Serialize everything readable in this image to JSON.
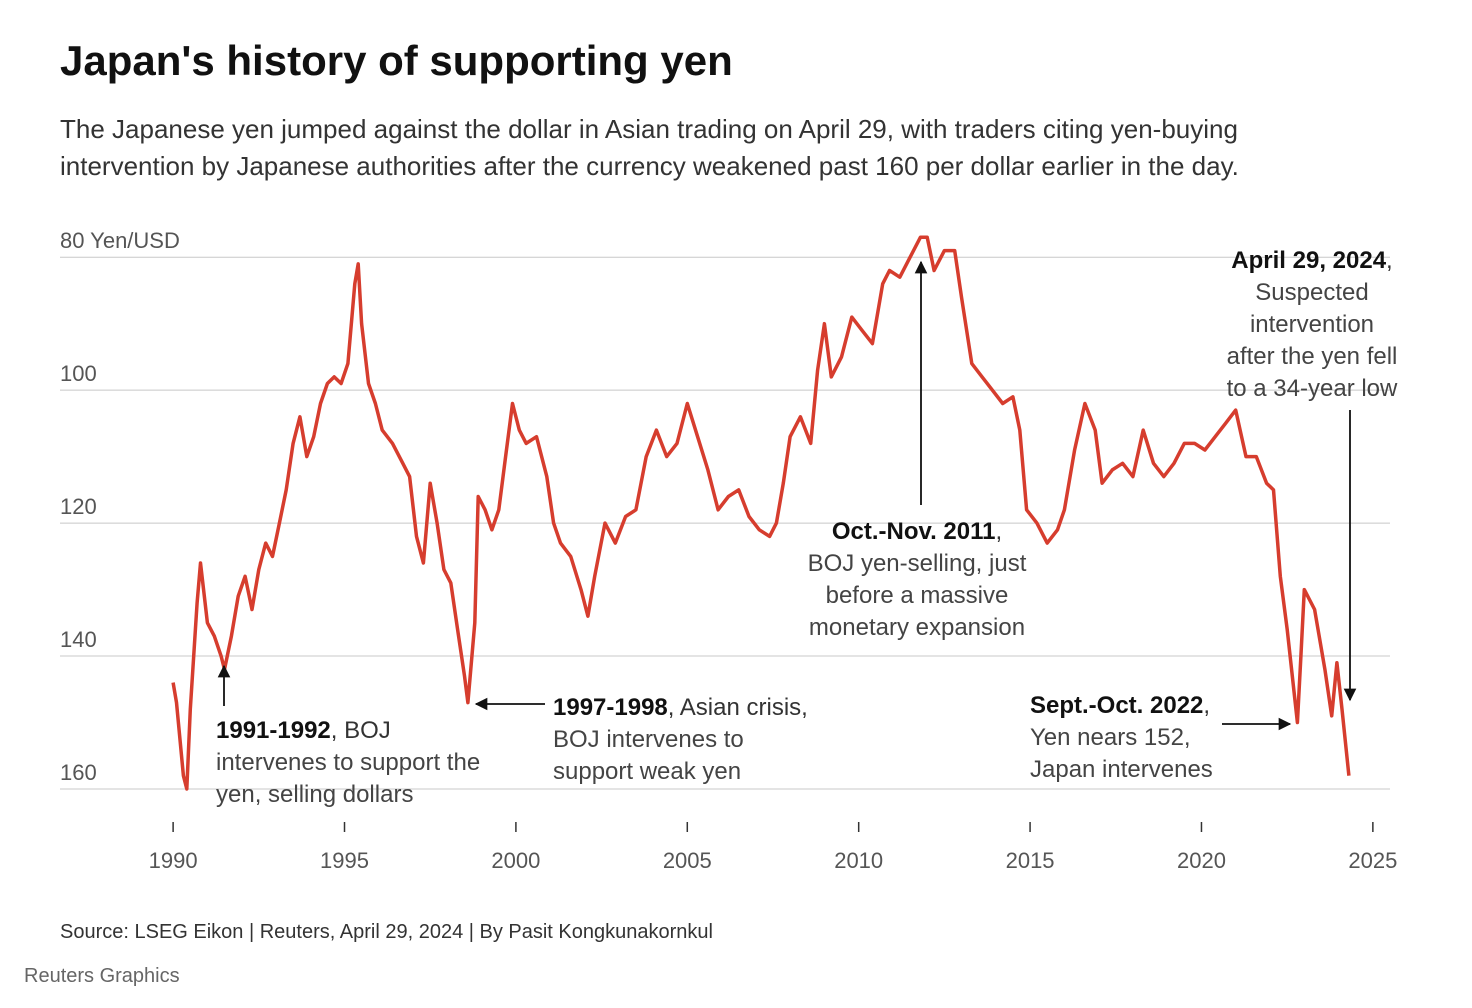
{
  "chart_data": {
    "type": "line",
    "title": "Japan's history of supporting yen",
    "subtitle": [
      "The Japanese yen jumped against the dollar in Asian trading on April 29, with traders citing yen-buying",
      "intervention by Japanese authorities after the currency weakened past 160 per dollar earlier in the day."
    ],
    "source": "Source: LSEG Eikon | Reuters, April 29, 2024 | By Pasit Kongkunakornkul",
    "credit": "Reuters Graphics",
    "y_inverted": true,
    "grid": true,
    "xlim": [
      1986.7,
      2025.5
    ],
    "ylim": [
      75,
      160
    ],
    "xticks": [
      1990,
      1995,
      2000,
      2005,
      2010,
      2015,
      2020,
      2025
    ],
    "yticks": [
      {
        "value": 80,
        "label": "80 Yen/USD"
      },
      100,
      120,
      140,
      160
    ],
    "series": [
      {
        "color": "#d63d2e",
        "x": [
          1990.0,
          1990.1,
          1990.3,
          1990.4,
          1990.5,
          1990.7,
          1990.8,
          1991.0,
          1991.2,
          1991.4,
          1991.5,
          1991.7,
          1991.9,
          1992.1,
          1992.3,
          1992.5,
          1992.7,
          1992.9,
          1993.1,
          1993.3,
          1993.5,
          1993.7,
          1993.9,
          1994.1,
          1994.3,
          1994.5,
          1994.7,
          1994.9,
          1995.1,
          1995.3,
          1995.4,
          1995.5,
          1995.7,
          1995.9,
          1996.1,
          1996.4,
          1996.7,
          1996.9,
          1997.1,
          1997.3,
          1997.5,
          1997.7,
          1997.9,
          1998.1,
          1998.3,
          1998.5,
          1998.6,
          1998.8,
          1998.9,
          1999.1,
          1999.3,
          1999.5,
          1999.7,
          1999.9,
          2000.1,
          2000.3,
          2000.6,
          2000.9,
          2001.1,
          2001.3,
          2001.6,
          2001.9,
          2002.1,
          2002.3,
          2002.6,
          2002.9,
          2003.2,
          2003.5,
          2003.8,
          2004.1,
          2004.4,
          2004.7,
          2005.0,
          2005.3,
          2005.6,
          2005.9,
          2006.2,
          2006.5,
          2006.8,
          2007.1,
          2007.4,
          2007.6,
          2007.8,
          2008.0,
          2008.3,
          2008.6,
          2008.8,
          2009.0,
          2009.2,
          2009.5,
          2009.8,
          2010.1,
          2010.4,
          2010.7,
          2010.9,
          2011.2,
          2011.5,
          2011.8,
          2012.0,
          2012.2,
          2012.5,
          2012.8,
          2013.0,
          2013.3,
          2013.6,
          2013.9,
          2014.2,
          2014.5,
          2014.7,
          2014.9,
          2015.2,
          2015.5,
          2015.8,
          2016.0,
          2016.3,
          2016.6,
          2016.9,
          2017.1,
          2017.4,
          2017.7,
          2018.0,
          2018.3,
          2018.6,
          2018.9,
          2019.2,
          2019.5,
          2019.8,
          2020.1,
          2020.4,
          2020.7,
          2021.0,
          2021.3,
          2021.6,
          2021.9,
          2022.1,
          2022.3,
          2022.5,
          2022.8,
          2022.9,
          2023.0,
          2023.3,
          2023.6,
          2023.8,
          2023.95,
          2024.1,
          2024.3
        ],
        "values": [
          144,
          147,
          158,
          160,
          148,
          132,
          126,
          135,
          137,
          140,
          142,
          137,
          131,
          128,
          133,
          127,
          123,
          125,
          120,
          115,
          108,
          104,
          110,
          107,
          102,
          99,
          98,
          99,
          96,
          84,
          81,
          90,
          99,
          102,
          106,
          108,
          111,
          113,
          122,
          126,
          114,
          120,
          127,
          129,
          136,
          143,
          147,
          135,
          116,
          118,
          121,
          118,
          110,
          102,
          106,
          108,
          107,
          113,
          120,
          123,
          125,
          130,
          134,
          128,
          120,
          123,
          119,
          118,
          110,
          106,
          110,
          108,
          102,
          107,
          112,
          118,
          116,
          115,
          119,
          121,
          122,
          120,
          114,
          107,
          104,
          108,
          97,
          90,
          98,
          95,
          89,
          91,
          93,
          84,
          82,
          83,
          80,
          77,
          77,
          82,
          79,
          79,
          86,
          96,
          98,
          100,
          102,
          101,
          106,
          118,
          120,
          123,
          121,
          118,
          109,
          102,
          106,
          114,
          112,
          111,
          113,
          106,
          111,
          113,
          111,
          108,
          108,
          109,
          107,
          105,
          103,
          110,
          110,
          114,
          115,
          128,
          136,
          150,
          140,
          130,
          133,
          142,
          149,
          141,
          148,
          158
        ]
      }
    ],
    "annotations": [
      {
        "bold": "1991-1992",
        "lines": [
          ", BOJ",
          "intervenes to support the",
          "yen, selling dollars"
        ]
      },
      {
        "bold": "1997-1998",
        "lines": [
          ", Asian crisis,",
          "BOJ intervenes to",
          "support weak yen"
        ]
      },
      {
        "bold": "Oct.-Nov. 2011",
        "lines": [
          ",",
          "BOJ yen-selling, just",
          "before a massive",
          "monetary expansion"
        ]
      },
      {
        "bold": "Sept.-Oct. 2022",
        "lines": [
          ",",
          "Yen nears 152,",
          "Japan intervenes"
        ]
      },
      {
        "bold": "April 29, 2024",
        "lines": [
          ",",
          "Suspected",
          "intervention",
          "after the yen fell",
          "to a 34-year low"
        ]
      }
    ]
  }
}
